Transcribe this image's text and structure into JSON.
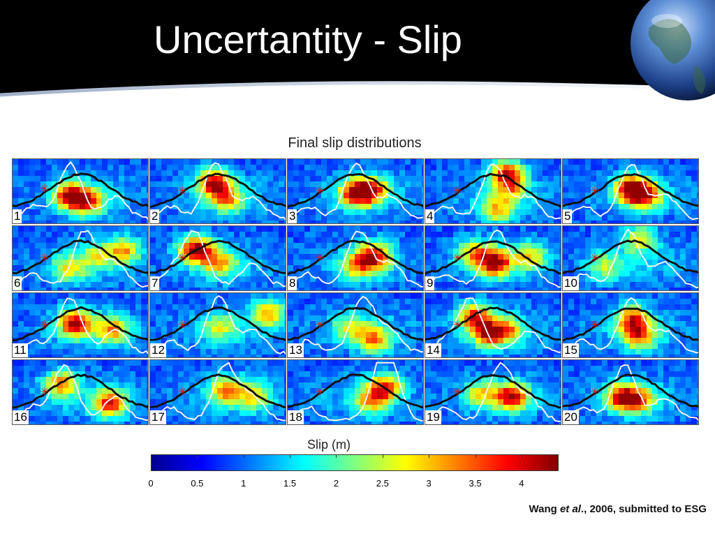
{
  "slide": {
    "title": "Uncertantity - Slip",
    "figure_title": "Final slip distributions",
    "colorbar_label": "Slip (m)",
    "colorbar_ticks": [
      "0",
      "0.5",
      "1",
      "1.5",
      "2",
      "2.5",
      "3",
      "3.5",
      "4"
    ],
    "colorbar_max": 4.4,
    "citation_prefix": "Wang ",
    "citation_italic": "et al",
    "citation_suffix": "., 2006, submitted to ESG"
  },
  "panels": [
    {
      "label": "1"
    },
    {
      "label": "2"
    },
    {
      "label": "3"
    },
    {
      "label": "4"
    },
    {
      "label": "5"
    },
    {
      "label": "6"
    },
    {
      "label": "7"
    },
    {
      "label": "8"
    },
    {
      "label": "9"
    },
    {
      "label": "10"
    },
    {
      "label": "11"
    },
    {
      "label": "12"
    },
    {
      "label": "13"
    },
    {
      "label": "14"
    },
    {
      "label": "15"
    },
    {
      "label": "16"
    },
    {
      "label": "17"
    },
    {
      "label": "18"
    },
    {
      "label": "19"
    },
    {
      "label": "20"
    }
  ],
  "colors": {
    "header_background": "#000000",
    "hypocenter_marker": "#e0201a",
    "profile_black": "#111111",
    "profile_white": "#f4f4f4"
  },
  "colormap": [
    "#00008f",
    "#0000ff",
    "#0080ff",
    "#00ffff",
    "#80ff80",
    "#ffff00",
    "#ff8000",
    "#ff0000",
    "#800000"
  ]
}
